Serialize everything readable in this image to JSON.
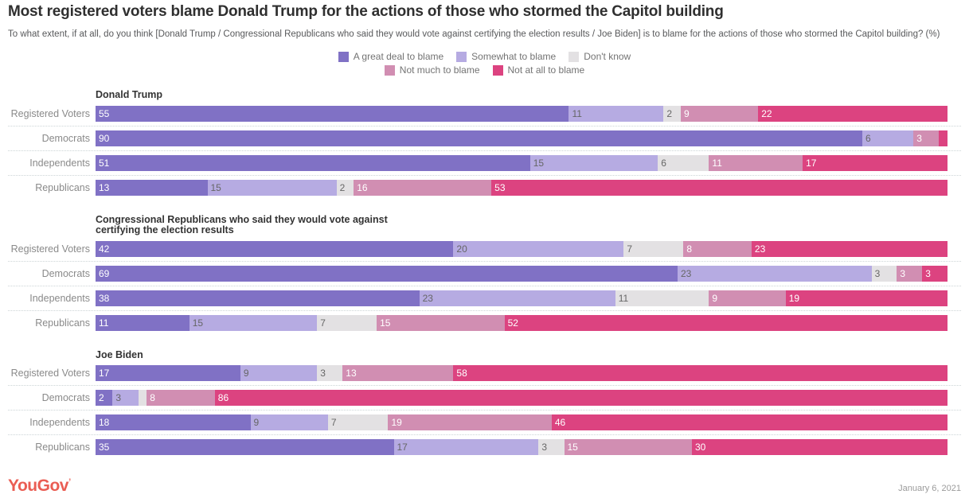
{
  "header": {
    "title": "Most registered voters blame Donald Trump for the actions of those who stormed the Capitol building",
    "subtitle": "To what extent, if at all, do you think [Donald Trump / Congressional Republicans who said they would vote against certifying the election results / Joe Biden] is to blame for the actions of those who stormed the Capitol building? (%)"
  },
  "legend": {
    "rows": [
      [
        "A great deal to blame",
        "Somewhat to blame",
        "Don't know"
      ],
      [
        "Not much to blame",
        "Not at all to blame"
      ]
    ]
  },
  "chart_data": {
    "type": "bar",
    "orientation": "horizontal",
    "stacked": true,
    "unit": "percent",
    "xlim": [
      0,
      100
    ],
    "grid": false,
    "legend_position": "top-center",
    "series_labels": [
      "A great deal to blame",
      "Somewhat to blame",
      "Don't know",
      "Not much to blame",
      "Not at all to blame"
    ],
    "series_colors": [
      "#8071c5",
      "#b6abe2",
      "#e3e1e3",
      "#d18eb2",
      "#dc4380"
    ],
    "series_label_text_colors": [
      "#ffffff",
      "#666666",
      "#666666",
      "#ffffff",
      "#ffffff"
    ],
    "sections": [
      {
        "heading": "Donald Trump",
        "rows": [
          {
            "category": "Registered Voters",
            "values": [
              55,
              11,
              2,
              9,
              22
            ],
            "labels": [
              "55",
              "11",
              "2",
              "9",
              "22"
            ]
          },
          {
            "category": "Democrats",
            "values": [
              90,
              6,
              0,
              3,
              1
            ],
            "labels": [
              "90",
              "6",
              "",
              "3",
              ""
            ]
          },
          {
            "category": "Independents",
            "values": [
              51,
              15,
              6,
              11,
              17
            ],
            "labels": [
              "51",
              "15",
              "6",
              "11",
              "17"
            ]
          },
          {
            "category": "Republicans",
            "values": [
              13,
              15,
              2,
              16,
              53
            ],
            "labels": [
              "13",
              "15",
              "2",
              "16",
              "53"
            ]
          }
        ]
      },
      {
        "heading": "Congressional Republicans who said they would vote against certifying the election results",
        "rows": [
          {
            "category": "Registered Voters",
            "values": [
              42,
              20,
              7,
              8,
              23
            ],
            "labels": [
              "42",
              "20",
              "7",
              "8",
              "23"
            ]
          },
          {
            "category": "Democrats",
            "values": [
              69,
              23,
              3,
              3,
              3
            ],
            "labels": [
              "69",
              "23",
              "3",
              "3",
              "3"
            ]
          },
          {
            "category": "Independents",
            "values": [
              38,
              23,
              11,
              9,
              19
            ],
            "labels": [
              "38",
              "23",
              "11",
              "9",
              "19"
            ]
          },
          {
            "category": "Republicans",
            "values": [
              11,
              15,
              7,
              15,
              52
            ],
            "labels": [
              "11",
              "15",
              "7",
              "15",
              "52"
            ]
          }
        ]
      },
      {
        "heading": "Joe Biden",
        "rows": [
          {
            "category": "Registered Voters",
            "values": [
              17,
              9,
              3,
              13,
              58
            ],
            "labels": [
              "17",
              "9",
              "3",
              "13",
              "58"
            ]
          },
          {
            "category": "Democrats",
            "values": [
              2,
              3,
              1,
              8,
              86
            ],
            "labels": [
              "2",
              "3",
              "",
              "8",
              "86"
            ]
          },
          {
            "category": "Independents",
            "values": [
              18,
              9,
              7,
              19,
              46
            ],
            "labels": [
              "18",
              "9",
              "7",
              "19",
              "46"
            ]
          },
          {
            "category": "Republicans",
            "values": [
              35,
              17,
              3,
              15,
              30
            ],
            "labels": [
              "35",
              "17",
              "3",
              "15",
              "30"
            ]
          }
        ]
      }
    ]
  },
  "footer": {
    "logo_text": "YouGov",
    "logo_mark": "’",
    "date": "January 6, 2021"
  },
  "colors": {
    "brand": "#ea5d53",
    "title_text": "#2f2f2f",
    "subtitle_text": "#58595b",
    "row_label_text": "#8a8a8a",
    "separator": "#ccd4d6"
  }
}
